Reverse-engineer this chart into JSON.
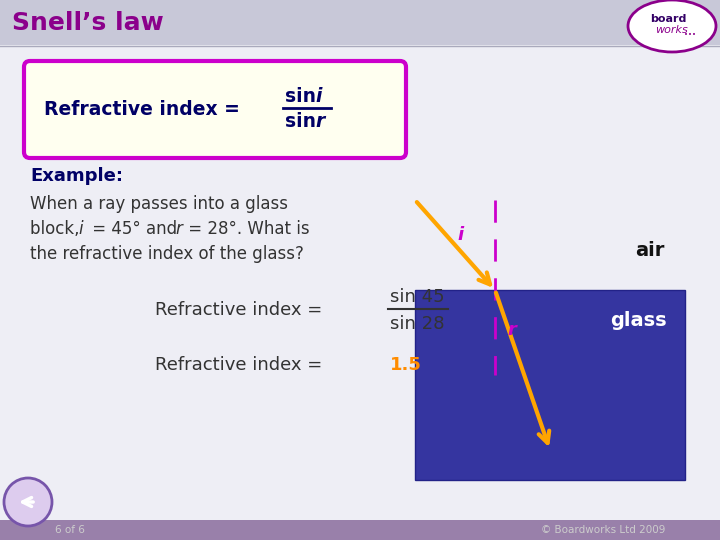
{
  "title": "Snell’s law",
  "title_color": "#8B008B",
  "header_bg": "#C8C8D8",
  "content_bg": "#EEEEF5",
  "formula_box_bg": "#FFFFF0",
  "formula_box_border": "#CC00CC",
  "glass_color": "#3535A0",
  "ray_color": "#FFA500",
  "dashed_color": "#CC00CC",
  "air_glass_text_color_dark": "#111111",
  "air_glass_text_color_light": "#FFFFFF",
  "formula_text_color": "#000066",
  "example_label_color": "#000066",
  "body_text_color": "#333333",
  "eq_text_color": "#333333",
  "eq3_value_color": "#FF8C00",
  "footer_bar_color": "#9980AA",
  "footer_text_color": "#CCCCCC",
  "back_btn_color": "#7755AA",
  "angle_i_label": "i",
  "angle_r_label": "r",
  "air_label": "air",
  "glass_label": "glass",
  "footer_left": "6 of 6",
  "footer_right": "© Boardworks Ltd 2009",
  "eq3_value": "1.5"
}
